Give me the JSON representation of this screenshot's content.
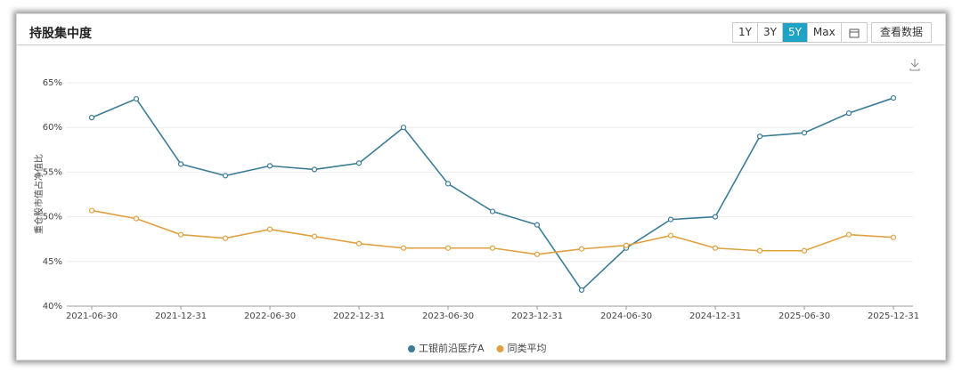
{
  "header": {
    "title": "持股集中度",
    "buttons": [
      "1Y",
      "3Y",
      "5Y",
      "Max"
    ],
    "view_data": "查看数据"
  },
  "chart_data": {
    "type": "line",
    "y_label": "重仓股市值占净值比",
    "categories": [
      "2021-06-30",
      null,
      "2021-12-31",
      null,
      "2022-06-30",
      null,
      "2022-12-31",
      null,
      "2023-06-30",
      null,
      "2023-12-31",
      null,
      "2024-06-30",
      null,
      "2024-12-31",
      null,
      "2025-06-30",
      null,
      "2025-12-31"
    ],
    "series": [
      {
        "name": "工银前沿医疗A",
        "color": "#3b7b95",
        "values": [
          61.1,
          63.2,
          55.9,
          54.6,
          55.7,
          55.3,
          56.0,
          60.0,
          53.7,
          50.6,
          49.1,
          41.8,
          46.5,
          49.7,
          50.0,
          59.0,
          59.4,
          61.6,
          63.3
        ]
      },
      {
        "name": "同类平均",
        "color": "#e0a040",
        "values": [
          50.7,
          49.8,
          48.0,
          47.6,
          48.6,
          47.8,
          47.0,
          46.5,
          46.5,
          46.5,
          45.8,
          46.4,
          46.8,
          47.9,
          46.5,
          46.2,
          46.2,
          48.0,
          47.7
        ]
      }
    ],
    "ylim": [
      40,
      65
    ],
    "yticks": [
      {
        "value": 40,
        "label": "40%"
      },
      {
        "value": 45,
        "label": "45%"
      },
      {
        "value": 50,
        "label": "50%"
      },
      {
        "value": 55,
        "label": "55%"
      },
      {
        "value": 60,
        "label": "60%"
      },
      {
        "value": 65,
        "label": "65%"
      }
    ],
    "grid": true
  }
}
